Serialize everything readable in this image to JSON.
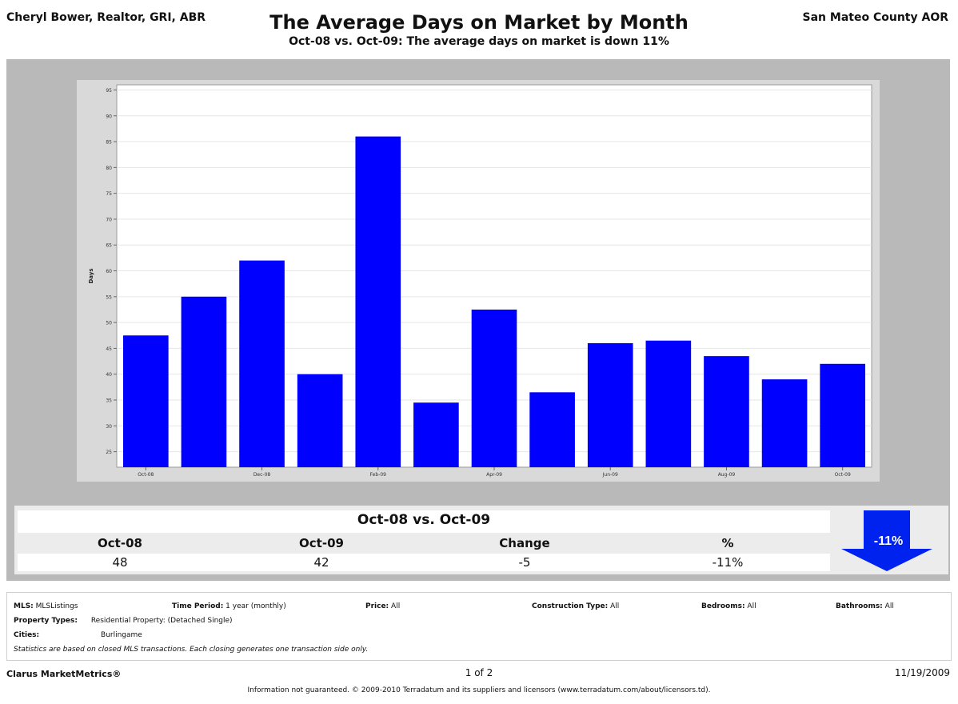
{
  "header": {
    "agent": "Cheryl Bower, Realtor, GRI, ABR",
    "title": "The Average Days on Market by Month",
    "subtitle": "Oct-08 vs. Oct-09:  The average days on market is down 11%",
    "association": "San Mateo County AOR"
  },
  "chart_data": {
    "type": "bar",
    "ylabel": "Days",
    "xlabel": "",
    "ylim": [
      22,
      96
    ],
    "yticks": [
      25,
      30,
      35,
      40,
      45,
      50,
      55,
      60,
      65,
      70,
      75,
      80,
      85,
      90,
      95
    ],
    "categories": [
      "Oct-08",
      "Nov-08",
      "Dec-08",
      "Jan-09",
      "Feb-09",
      "Mar-09",
      "Apr-09",
      "May-09",
      "Jun-09",
      "Jul-09",
      "Aug-09",
      "Sep-09",
      "Oct-09"
    ],
    "x_tick_labels": [
      "Oct-08",
      "",
      "Dec-08",
      "",
      "Feb-09",
      "",
      "Apr-09",
      "",
      "Jun-09",
      "",
      "Aug-09",
      "",
      "Oct-09"
    ],
    "values": [
      47.5,
      55,
      62,
      40,
      86,
      34.5,
      52.5,
      36.5,
      46,
      46.5,
      43.5,
      39,
      42
    ],
    "bar_color": "#0000ff",
    "grid": true
  },
  "summary": {
    "title": "Oct-08 vs. Oct-09",
    "headers": [
      "Oct-08",
      "Oct-09",
      "Change",
      "%"
    ],
    "values": [
      "48",
      "42",
      "-5",
      "-11%"
    ],
    "badge": "-11%",
    "arrow_color": "#0022ee"
  },
  "criteria": {
    "mls_label": "MLS:",
    "mls_value": "MLSListings",
    "period_label": "Time Period:",
    "period_value": "1 year (monthly)",
    "price_label": "Price:",
    "price_value": "All",
    "construction_label": "Construction Type:",
    "construction_value": "All",
    "bedrooms_label": "Bedrooms:",
    "bedrooms_value": "All",
    "bathrooms_label": "Bathrooms:",
    "bathrooms_value": "All",
    "ptypes_label": "Property Types:",
    "ptypes_value": "Residential Property: (Detached Single)",
    "cities_label": "Cities:",
    "cities_value": "Burlingame",
    "note": "Statistics are based on closed MLS transactions.  Each closing generates one transaction side only."
  },
  "footer": {
    "brand": "Clarus MarketMetrics®",
    "page": "1 of 2",
    "date": "11/19/2009",
    "disclaimer": "Information not guaranteed.  © 2009-2010 Terradatum and its suppliers and licensors (www.terradatum.com/about/licensors.td)."
  }
}
